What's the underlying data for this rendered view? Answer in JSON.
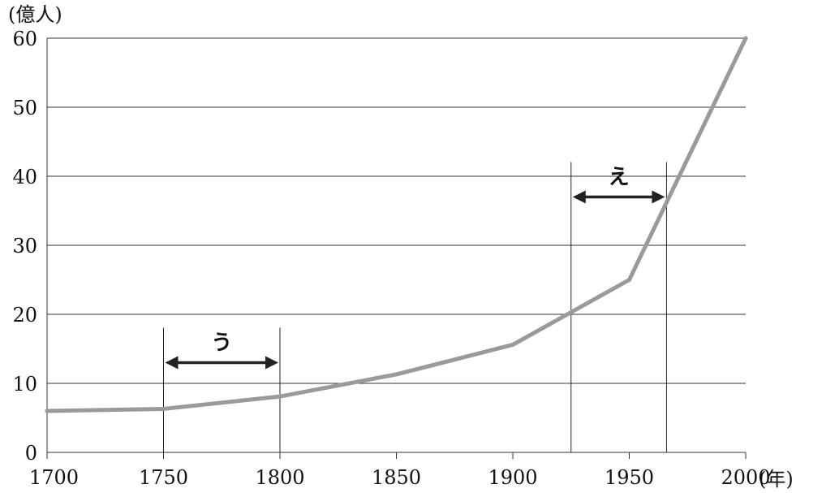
{
  "chart_data": {
    "type": "line",
    "title": "",
    "ylabel": "(億人)",
    "xlabel": "(年)",
    "xlim": [
      1700,
      2000
    ],
    "ylim": [
      0,
      60
    ],
    "x_ticks": [
      1700,
      1750,
      1800,
      1850,
      1900,
      1950,
      2000
    ],
    "y_ticks": [
      0,
      10,
      20,
      30,
      40,
      50,
      60
    ],
    "grid": "horizontal",
    "series": [
      {
        "x": [
          1700,
          1750,
          1800,
          1850,
          1900,
          1950,
          2000
        ],
        "y": [
          6,
          6.3,
          8.1,
          11.3,
          15.6,
          25,
          60
        ],
        "color": "#9a9a9a"
      }
    ],
    "annotations": [
      {
        "label": "う",
        "x_start": 1750,
        "x_end": 1800,
        "arrow_y": 13
      },
      {
        "label": "え",
        "x_start": 1925,
        "x_end": 1966,
        "arrow_y": 37
      }
    ]
  }
}
